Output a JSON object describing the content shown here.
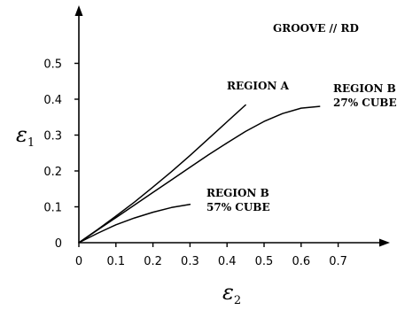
{
  "chart_data": {
    "type": "line",
    "xlim": [
      0,
      0.8
    ],
    "ylim": [
      0,
      0.6
    ],
    "x_ticks": [
      {
        "value": 0,
        "label": "0"
      },
      {
        "value": 0.1,
        "label": "0.1"
      },
      {
        "value": 0.2,
        "label": "0.2"
      },
      {
        "value": 0.3,
        "label": "0.3"
      },
      {
        "value": 0.4,
        "label": "0.4"
      },
      {
        "value": 0.5,
        "label": "0.5"
      },
      {
        "value": 0.6,
        "label": "0.6"
      },
      {
        "value": 0.7,
        "label": "0.7"
      }
    ],
    "y_ticks": [
      {
        "value": 0,
        "label": "0"
      },
      {
        "value": 0.1,
        "label": "0.1"
      },
      {
        "value": 0.2,
        "label": "0.2"
      },
      {
        "value": 0.3,
        "label": "0.3"
      },
      {
        "value": 0.4,
        "label": "0.4"
      },
      {
        "value": 0.5,
        "label": "0.5"
      }
    ],
    "xlabel_symbol": "ε",
    "xlabel_subscript": "2",
    "ylabel_symbol": "ε",
    "ylabel_subscript": "1",
    "annotation": "GROOVE // RD",
    "grid": false,
    "series": [
      {
        "id": "region-a",
        "label_lines": [
          "REGION A"
        ],
        "x": [
          0,
          0.05,
          0.1,
          0.15,
          0.2,
          0.25,
          0.3,
          0.35,
          0.4,
          0.45
        ],
        "y": [
          0,
          0.036,
          0.074,
          0.113,
          0.155,
          0.198,
          0.243,
          0.29,
          0.337,
          0.384
        ]
      },
      {
        "id": "region-b-27",
        "label_lines": [
          "REGION B",
          "27% CUBE"
        ],
        "x": [
          0,
          0.05,
          0.1,
          0.15,
          0.2,
          0.25,
          0.3,
          0.35,
          0.4,
          0.45,
          0.5,
          0.55,
          0.6,
          0.65
        ],
        "y": [
          0,
          0.035,
          0.07,
          0.105,
          0.14,
          0.175,
          0.21,
          0.245,
          0.278,
          0.31,
          0.338,
          0.36,
          0.375,
          0.38
        ]
      },
      {
        "id": "region-b-57",
        "label_lines": [
          "REGION B",
          "57% CUBE"
        ],
        "x": [
          0,
          0.05,
          0.1,
          0.15,
          0.2,
          0.25,
          0.3
        ],
        "y": [
          0,
          0.026,
          0.05,
          0.069,
          0.085,
          0.098,
          0.107
        ]
      }
    ]
  }
}
